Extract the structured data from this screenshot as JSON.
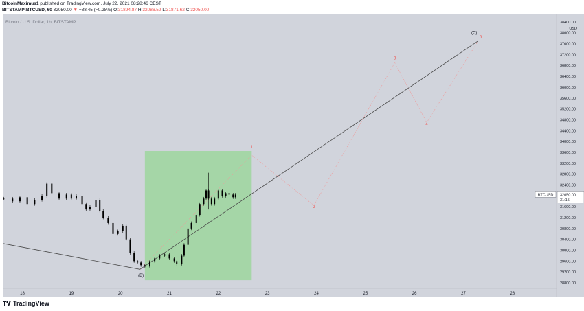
{
  "header": {
    "author": "BitcoinMaximus1",
    "published_text": "published on TradingView.com, July 22, 2021 08:28:46 CEST",
    "symbol_line": "BITSTAMP:BTCUSD, 60",
    "price": "32050.00",
    "change_arrow": "▼",
    "change": "−88.45 (−0.28%)",
    "o_label": "O:",
    "o_value": "31894.87",
    "h_label": "H:",
    "h_value": "32086.59",
    "l_label": "L:",
    "l_value": "31871.62",
    "c_label": "C:",
    "c_value": "32050.00"
  },
  "chart_title": "Bitcoin / U.S. Dollar, 1h, BITSTAMP",
  "footer": {
    "logo": "TradingView"
  },
  "colors": {
    "plot_bg": "#d1d4dc",
    "candle": "#000000",
    "box_fill": "#a5d6a7",
    "wave_label": "#ef5350",
    "trendline": "#4a4a4a",
    "projection": "#ef9a9a"
  },
  "chart_data": {
    "type": "candlestick",
    "title": "Bitcoin / U.S. Dollar, 1h, BITSTAMP",
    "x_ticks": [
      "18",
      "19",
      "20",
      "21",
      "22",
      "23",
      "24",
      "25",
      "26",
      "27",
      "28"
    ],
    "y_unit": "USD",
    "y_ticks": [
      "38400.00",
      "38000.00",
      "37600.00",
      "37200.00",
      "36800.00",
      "36400.00",
      "36000.00",
      "35600.00",
      "35200.00",
      "34800.00",
      "34400.00",
      "34000.00",
      "33600.00",
      "33200.00",
      "32800.00",
      "32400.00",
      "32000.00",
      "31600.00",
      "31200.00",
      "30800.00",
      "30400.00",
      "30000.00",
      "29600.00",
      "29200.00",
      "28800.00"
    ],
    "ylim": [
      28600,
      38700
    ],
    "xlim": [
      17.6,
      28.9
    ],
    "last_price_label": {
      "symbol": "BTCUSD",
      "price": "32050.00",
      "countdown": "31:15",
      "value": 32050
    },
    "price_path": [
      [
        17.62,
        31900
      ],
      [
        17.8,
        31800
      ],
      [
        17.95,
        31950
      ],
      [
        18.1,
        31700
      ],
      [
        18.25,
        31850
      ],
      [
        18.4,
        32000
      ],
      [
        18.5,
        32450
      ],
      [
        18.6,
        32100
      ],
      [
        18.75,
        31900
      ],
      [
        18.9,
        32050
      ],
      [
        19.0,
        31900
      ],
      [
        19.1,
        32000
      ],
      [
        19.22,
        31700
      ],
      [
        19.3,
        31500
      ],
      [
        19.38,
        31600
      ],
      [
        19.5,
        31850
      ],
      [
        19.58,
        31450
      ],
      [
        19.65,
        31200
      ],
      [
        19.75,
        31000
      ],
      [
        19.85,
        30600
      ],
      [
        19.95,
        30700
      ],
      [
        20.05,
        30900
      ],
      [
        20.12,
        30400
      ],
      [
        20.2,
        29900
      ],
      [
        20.28,
        29600
      ],
      [
        20.35,
        29550
      ],
      [
        20.42,
        29450
      ],
      [
        20.5,
        29400
      ],
      [
        20.6,
        29600
      ],
      [
        20.7,
        29700
      ],
      [
        20.8,
        29800
      ],
      [
        20.9,
        29850
      ],
      [
        21.0,
        29700
      ],
      [
        21.1,
        29600
      ],
      [
        21.15,
        29500
      ],
      [
        21.25,
        29800
      ],
      [
        21.3,
        30200
      ],
      [
        21.38,
        30800
      ],
      [
        21.45,
        31000
      ],
      [
        21.55,
        31300
      ],
      [
        21.62,
        31700
      ],
      [
        21.7,
        31900
      ],
      [
        21.75,
        32200
      ],
      [
        21.8,
        31900
      ],
      [
        21.86,
        31700
      ],
      [
        21.92,
        31900
      ],
      [
        22.0,
        32200
      ],
      [
        22.08,
        32000
      ],
      [
        22.15,
        32100
      ],
      [
        22.22,
        32050
      ],
      [
        22.3,
        31950
      ],
      [
        22.35,
        32050
      ]
    ],
    "wicks": [
      [
        21.8,
        31500,
        32850
      ]
    ],
    "box": {
      "x0": 20.5,
      "x1": 22.68,
      "y0": 28900,
      "y1": 33650
    },
    "trendline": [
      [
        17.6,
        30250
      ],
      [
        20.4,
        29300
      ],
      [
        27.3,
        37700
      ]
    ],
    "projection": [
      [
        20.4,
        29300
      ],
      [
        22.68,
        33500
      ],
      [
        23.95,
        31650
      ],
      [
        25.6,
        36900
      ],
      [
        26.25,
        34700
      ],
      [
        27.3,
        37700
      ]
    ],
    "wave_labels": [
      {
        "text": "(B)",
        "x": 20.42,
        "y": 29030,
        "color": "#131722"
      },
      {
        "text": "1",
        "x": 22.68,
        "y": 33750,
        "color": "#ef5350"
      },
      {
        "text": "2",
        "x": 23.95,
        "y": 31560,
        "color": "#ef5350"
      },
      {
        "text": "3",
        "x": 25.6,
        "y": 37020,
        "color": "#ef5350"
      },
      {
        "text": "4",
        "x": 26.25,
        "y": 34600,
        "color": "#ef5350"
      },
      {
        "text": "5",
        "x": 27.35,
        "y": 37800,
        "color": "#ef5350"
      },
      {
        "text": "(C)",
        "x": 27.22,
        "y": 37950,
        "color": "#131722"
      }
    ]
  }
}
